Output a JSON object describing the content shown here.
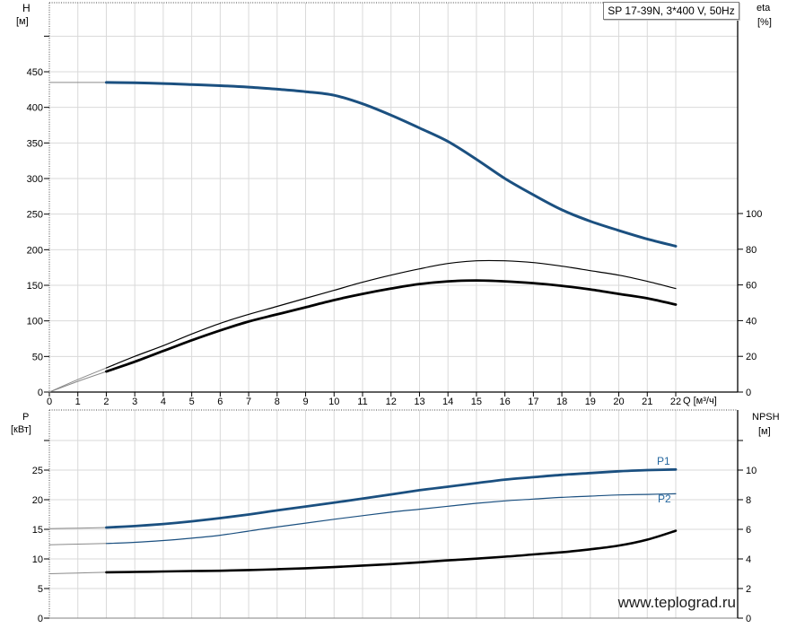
{
  "title_box": "SP 17-39N, 3*400 V, 50Hz",
  "watermark": "www.teplograd.ru",
  "labels": {
    "h_axis": "H",
    "h_unit": "[м]",
    "eta_axis": "eta",
    "eta_unit": "[%]",
    "q_axis": "Q [м³/ч]",
    "p_axis": "P",
    "p_unit": "[кВт]",
    "npsh_axis": "NPSH",
    "npsh_unit": "[м]",
    "p1": "P1",
    "p2": "P2"
  },
  "colors": {
    "curve_blue": "#1b5080",
    "label_blue": "#2668a0",
    "curve_black": "#000000",
    "lead_gray": "#8a8a8a",
    "grid": "#d9d9d9",
    "axis": "#000000",
    "frame_dotted": "#444444",
    "bottom_frame": "#808080",
    "tick_text": "#000000"
  },
  "chart_data": [
    {
      "type": "line",
      "title": "SP 17-39N, 3*400 V, 50Hz",
      "xlabel": "Q [м³/ч]",
      "xlim": [
        0,
        22
      ],
      "x_ticks": [
        0,
        1,
        2,
        3,
        4,
        5,
        6,
        7,
        8,
        9,
        10,
        11,
        12,
        13,
        14,
        15,
        16,
        17,
        18,
        19,
        20,
        21,
        22
      ],
      "x_grid": [
        1,
        2,
        3,
        4,
        5,
        6,
        7,
        8,
        9,
        10,
        11,
        12,
        13,
        14,
        15,
        16,
        17,
        18,
        19,
        20,
        21,
        22
      ],
      "y_left": {
        "label": "H [м]",
        "lim": [
          0,
          547
        ],
        "ticks": [
          0,
          50,
          100,
          150,
          200,
          250,
          300,
          350,
          400,
          450
        ],
        "extra_ticks": [
          500
        ],
        "grid_values": [
          50,
          100,
          150,
          200,
          250,
          300,
          350,
          400,
          450,
          500
        ]
      },
      "y_right": {
        "label": "eta [%]",
        "lim": [
          0,
          218
        ],
        "ticks": [
          0,
          20,
          40,
          60,
          80,
          100
        ],
        "extra_ticks": []
      },
      "series": [
        {
          "name": "H",
          "yaxis": "left",
          "color": "#1b5080",
          "width": 3,
          "lead_color": "#8a8a8a",
          "solid_from": 2,
          "points": [
            [
              0,
              435
            ],
            [
              1,
              435
            ],
            [
              2,
              435
            ],
            [
              3,
              434.5
            ],
            [
              4,
              433.5
            ],
            [
              5,
              432
            ],
            [
              6,
              430.5
            ],
            [
              7,
              428.5
            ],
            [
              8,
              425.5
            ],
            [
              9,
              422
            ],
            [
              10,
              417
            ],
            [
              11,
              405
            ],
            [
              12,
              389
            ],
            [
              13,
              371
            ],
            [
              14,
              352
            ],
            [
              15,
              327
            ],
            [
              16,
              300
            ],
            [
              17,
              277
            ],
            [
              18,
              256
            ],
            [
              19,
              240
            ],
            [
              20,
              227
            ],
            [
              21,
              215
            ],
            [
              22,
              205
            ]
          ]
        },
        {
          "name": "eta",
          "yaxis": "right",
          "color": "#000000",
          "width": 1.2,
          "lead_color": "#8a8a8a",
          "solid_from": 2,
          "points": [
            [
              0,
              0
            ],
            [
              1,
              7
            ],
            [
              2,
              13.5
            ],
            [
              3,
              20
            ],
            [
              4,
              26
            ],
            [
              5,
              32.5
            ],
            [
              6,
              38.5
            ],
            [
              7,
              43.5
            ],
            [
              8,
              48
            ],
            [
              9,
              52.5
            ],
            [
              10,
              57
            ],
            [
              11,
              61.5
            ],
            [
              12,
              65.5
            ],
            [
              13,
              69
            ],
            [
              14,
              72
            ],
            [
              15,
              73.5
            ],
            [
              16,
              73.5
            ],
            [
              17,
              72.5
            ],
            [
              18,
              70.5
            ],
            [
              19,
              68
            ],
            [
              20,
              65.5
            ],
            [
              21,
              62
            ],
            [
              22,
              58
            ]
          ]
        },
        {
          "name": "eta_total",
          "yaxis": "right",
          "color": "#000000",
          "width": 2.8,
          "lead_color": "#8a8a8a",
          "solid_from": 2,
          "points": [
            [
              0,
              0
            ],
            [
              1,
              6
            ],
            [
              2,
              11.5
            ],
            [
              3,
              17
            ],
            [
              4,
              23
            ],
            [
              5,
              29
            ],
            [
              6,
              34.5
            ],
            [
              7,
              39.5
            ],
            [
              8,
              43.5
            ],
            [
              9,
              47.5
            ],
            [
              10,
              51.5
            ],
            [
              11,
              55
            ],
            [
              12,
              58
            ],
            [
              13,
              60.5
            ],
            [
              14,
              62
            ],
            [
              15,
              62.5
            ],
            [
              16,
              62
            ],
            [
              17,
              61
            ],
            [
              18,
              59.5
            ],
            [
              19,
              57.5
            ],
            [
              20,
              55
            ],
            [
              21,
              52.5
            ],
            [
              22,
              49
            ]
          ]
        }
      ]
    },
    {
      "type": "line",
      "title": "",
      "xlabel": "",
      "xlim": [
        0,
        22
      ],
      "x_ticks": [],
      "x_grid": [
        1,
        2,
        3,
        4,
        5,
        6,
        7,
        8,
        9,
        10,
        11,
        12,
        13,
        14,
        15,
        16,
        17,
        18,
        19,
        20,
        21,
        22
      ],
      "y_left": {
        "label": "P [кВт]",
        "lim": [
          0,
          35
        ],
        "ticks": [
          0,
          5,
          10,
          15,
          20,
          25
        ],
        "extra_ticks": [
          30
        ],
        "grid_values": [
          5,
          10,
          15,
          20,
          25,
          30
        ]
      },
      "y_right": {
        "label": "NPSH [м]",
        "lim": [
          0,
          14
        ],
        "ticks": [
          0,
          2,
          4,
          6,
          8,
          10
        ],
        "extra_ticks": [
          12
        ]
      },
      "series": [
        {
          "name": "P1",
          "yaxis": "left",
          "color": "#1b5080",
          "width": 2.8,
          "lead_color": "#8a8a8a",
          "solid_from": 2,
          "points": [
            [
              0,
              15.1
            ],
            [
              1,
              15.2
            ],
            [
              2,
              15.3
            ],
            [
              3,
              15.55
            ],
            [
              4,
              15.9
            ],
            [
              5,
              16.35
            ],
            [
              6,
              16.9
            ],
            [
              7,
              17.5
            ],
            [
              8,
              18.2
            ],
            [
              9,
              18.85
            ],
            [
              10,
              19.5
            ],
            [
              11,
              20.2
            ],
            [
              12,
              20.9
            ],
            [
              13,
              21.6
            ],
            [
              14,
              22.2
            ],
            [
              15,
              22.8
            ],
            [
              16,
              23.4
            ],
            [
              17,
              23.8
            ],
            [
              18,
              24.2
            ],
            [
              19,
              24.5
            ],
            [
              20,
              24.8
            ],
            [
              21,
              25.0
            ],
            [
              22,
              25.1
            ]
          ]
        },
        {
          "name": "P2",
          "yaxis": "left",
          "color": "#1b5080",
          "width": 1.2,
          "lead_color": "#8a8a8a",
          "solid_from": 2,
          "points": [
            [
              0,
              12.4
            ],
            [
              1,
              12.5
            ],
            [
              2,
              12.6
            ],
            [
              3,
              12.8
            ],
            [
              4,
              13.1
            ],
            [
              5,
              13.5
            ],
            [
              6,
              14.0
            ],
            [
              7,
              14.7
            ],
            [
              8,
              15.4
            ],
            [
              9,
              16.05
            ],
            [
              10,
              16.7
            ],
            [
              11,
              17.3
            ],
            [
              12,
              17.9
            ],
            [
              13,
              18.4
            ],
            [
              14,
              18.9
            ],
            [
              15,
              19.4
            ],
            [
              16,
              19.8
            ],
            [
              17,
              20.1
            ],
            [
              18,
              20.4
            ],
            [
              19,
              20.6
            ],
            [
              20,
              20.8
            ],
            [
              21,
              20.9
            ],
            [
              22,
              21.0
            ]
          ]
        },
        {
          "name": "NPSH",
          "yaxis": "right",
          "color": "#000000",
          "width": 2.6,
          "lead_color": "#8a8a8a",
          "solid_from": 2,
          "points": [
            [
              0,
              3.0
            ],
            [
              1,
              3.05
            ],
            [
              2,
              3.1
            ],
            [
              3,
              3.12
            ],
            [
              4,
              3.15
            ],
            [
              5,
              3.18
            ],
            [
              6,
              3.2
            ],
            [
              7,
              3.25
            ],
            [
              8,
              3.3
            ],
            [
              9,
              3.37
            ],
            [
              10,
              3.45
            ],
            [
              11,
              3.55
            ],
            [
              12,
              3.65
            ],
            [
              13,
              3.77
            ],
            [
              14,
              3.9
            ],
            [
              15,
              4.02
            ],
            [
              16,
              4.15
            ],
            [
              17,
              4.3
            ],
            [
              18,
              4.45
            ],
            [
              19,
              4.65
            ],
            [
              20,
              4.9
            ],
            [
              21,
              5.3
            ],
            [
              22,
              5.9
            ]
          ]
        }
      ]
    }
  ]
}
